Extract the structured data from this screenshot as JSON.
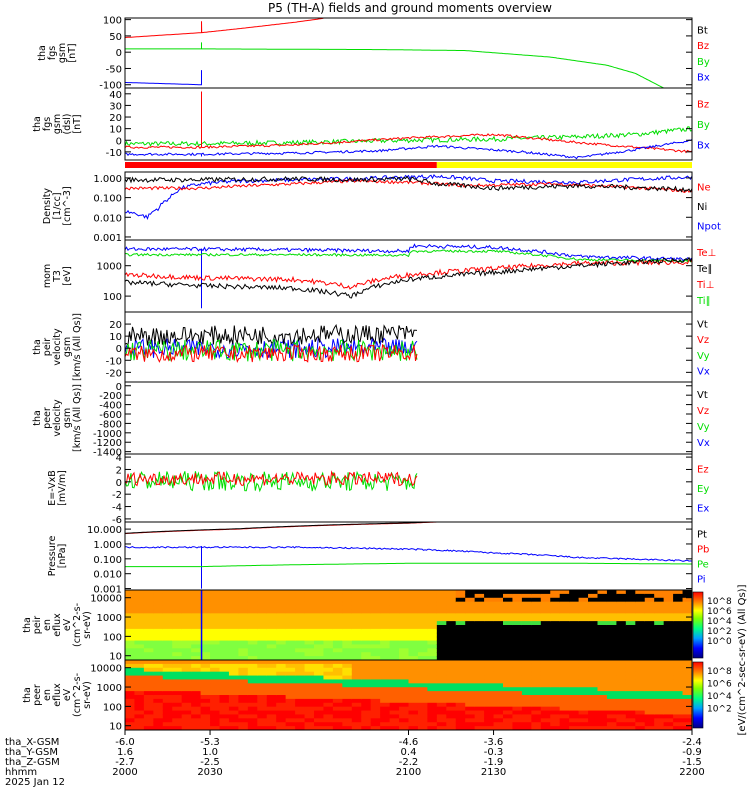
{
  "title": "P5 (TH-A) fields and ground moments overview",
  "colors": {
    "red": "#ff0000",
    "green": "#00dd00",
    "blue": "#0000ff",
    "black": "#000000",
    "yellow": "#ffff00"
  },
  "status_bar": {
    "segments": [
      {
        "from": 2000,
        "to": 2110,
        "color": "#ff0000"
      },
      {
        "from": 2110,
        "to": 2200,
        "color": "#ffff00"
      }
    ]
  },
  "chart_data": [
    {
      "id": "fgs_gsm",
      "type": "line",
      "ylabel": [
        "tha",
        "fgs",
        "gsm",
        "[nT]"
      ],
      "ylim": [
        -110,
        105
      ],
      "ticks": [
        100,
        50,
        0,
        -50,
        -100
      ],
      "legend": [
        {
          "label": "Bt",
          "color": "#000000"
        },
        {
          "label": "Bz",
          "color": "#ff0000"
        },
        {
          "label": "By",
          "color": "#00dd00"
        },
        {
          "label": "Bx",
          "color": "#0000ff"
        }
      ],
      "series": [
        {
          "color": "#ff0000",
          "x": [
            2000,
            2027,
            2040,
            2060,
            2070
          ],
          "y": [
            45,
            60,
            72,
            92,
            104
          ],
          "spike": {
            "x": 2027,
            "y": 95
          }
        },
        {
          "color": "#00dd00",
          "x": [
            2000,
            2030,
            2060,
            2090,
            2120,
            2150,
            2170,
            2180,
            2190
          ],
          "y": [
            10,
            10,
            9,
            8,
            5,
            -15,
            -40,
            -65,
            -110
          ],
          "spike": {
            "x": 2027,
            "y": 30
          }
        },
        {
          "color": "#0000ff",
          "x": [
            2000,
            2027
          ],
          "y": [
            -93,
            -100
          ],
          "spike": {
            "x": 2027,
            "y": -55
          }
        }
      ]
    },
    {
      "id": "fgs_gsm_dsl",
      "type": "line",
      "ylabel": [
        "tha",
        "fgs",
        "gsm",
        "(dsl)",
        "[nT]"
      ],
      "ylim": [
        -17,
        45
      ],
      "ticks": [
        40,
        30,
        20,
        10,
        0,
        -10
      ],
      "legend": [
        {
          "label": "Bz",
          "color": "#ff0000"
        },
        {
          "label": "By",
          "color": "#00dd00"
        },
        {
          "label": "Bx",
          "color": "#0000ff"
        }
      ],
      "series": [
        {
          "color": "#00dd00",
          "x": [
            2000,
            2027,
            2060,
            2100,
            2130,
            2160,
            2180,
            2200
          ],
          "y": [
            -3,
            -3,
            -2,
            0,
            1,
            3,
            5,
            10
          ],
          "noise": 2,
          "spike": {
            "x": 2027,
            "y": 20
          }
        },
        {
          "color": "#ff0000",
          "x": [
            2000,
            2027,
            2060,
            2100,
            2130,
            2160,
            2180,
            2200
          ],
          "y": [
            -6,
            -6,
            -4,
            2,
            5,
            -2,
            -6,
            -10
          ],
          "noise": 1,
          "spike": {
            "x": 2027,
            "y": 42
          }
        },
        {
          "color": "#0000ff",
          "x": [
            2000,
            2027,
            2060,
            2090,
            2110,
            2140,
            2160,
            2180,
            2200
          ],
          "y": [
            -12,
            -12,
            -11,
            -9,
            -5,
            -10,
            -15,
            -8,
            0
          ],
          "noise": 1,
          "spike": {
            "x": 2027,
            "y": -14
          }
        }
      ]
    },
    {
      "id": "density",
      "type": "line",
      "log": true,
      "ylabel": [
        "Density",
        "[1/cc]",
        "[cm^-3]"
      ],
      "ylim": [
        0.0007,
        2
      ],
      "ticks": [
        1.0,
        0.1,
        0.01,
        0.001
      ],
      "tick_labels": [
        "1.000",
        "0.100",
        "0.010",
        "0.001"
      ],
      "legend": [
        {
          "label": "Ne",
          "color": "#ff0000"
        },
        {
          "label": "Ni",
          "color": "#000000"
        },
        {
          "label": "Npot",
          "color": "#0000ff"
        }
      ],
      "series": [
        {
          "color": "#0000ff",
          "x": [
            2000,
            2008,
            2012,
            2016,
            2020,
            2027,
            2040,
            2060,
            2080,
            2100,
            2110,
            2130,
            2160,
            2200
          ],
          "y": [
            0.02,
            0.01,
            0.03,
            0.1,
            0.3,
            0.5,
            0.7,
            0.8,
            0.9,
            1.1,
            1.2,
            0.7,
            0.6,
            1.1
          ],
          "noise": 0.1
        },
        {
          "color": "#ff0000",
          "x": [
            2000,
            2027,
            2060,
            2080,
            2100,
            2120,
            2150,
            2200
          ],
          "y": [
            0.3,
            0.3,
            0.5,
            0.7,
            0.6,
            0.4,
            0.5,
            0.2
          ],
          "noise": 0.08
        },
        {
          "color": "#000000",
          "x": [
            2000,
            2027,
            2060,
            2080,
            2100,
            2110,
            2130,
            2160,
            2200
          ],
          "y": [
            0.8,
            0.8,
            0.9,
            0.8,
            0.9,
            0.5,
            0.3,
            0.4,
            0.25
          ],
          "noise": 0.12
        }
      ]
    },
    {
      "id": "moments",
      "type": "line",
      "log": true,
      "ylabel": [
        "mom",
        "T3",
        "[eV]"
      ],
      "ylim": [
        30,
        7000
      ],
      "ticks": [
        1000,
        100
      ],
      "tick_labels": [
        "1000",
        "100"
      ],
      "legend": [
        {
          "label": "Te⊥",
          "color": "#ff0000"
        },
        {
          "label": "Te∥",
          "color": "#000000"
        },
        {
          "label": "Ti⊥",
          "color": "#ff0000"
        },
        {
          "label": "Ti∥",
          "color": "#00dd00"
        }
      ],
      "series": [
        {
          "color": "#0000ff",
          "x": [
            2000,
            2027,
            2060,
            2100,
            2101,
            2130,
            2160,
            2200
          ],
          "y": [
            3500,
            3500,
            3300,
            3000,
            4500,
            4000,
            2000,
            1600
          ],
          "noise": 0.06,
          "spike": {
            "x": 2027,
            "y": 40
          }
        },
        {
          "color": "#00dd00",
          "x": [
            2000,
            2027,
            2060,
            2100,
            2101,
            2130,
            2160,
            2200
          ],
          "y": [
            2300,
            2300,
            2300,
            2200,
            3000,
            3000,
            1600,
            1400
          ],
          "noise": 0.04
        },
        {
          "color": "#ff0000",
          "x": [
            2000,
            2027,
            2060,
            2080,
            2100,
            2130,
            2160,
            2200
          ],
          "y": [
            500,
            400,
            350,
            200,
            500,
            800,
            1200,
            1300
          ],
          "noise": 0.08
        },
        {
          "color": "#000000",
          "x": [
            2000,
            2027,
            2060,
            2080,
            2100,
            2130,
            2160,
            2200
          ],
          "y": [
            280,
            220,
            180,
            100,
            350,
            600,
            1000,
            1600
          ],
          "noise": 0.08
        }
      ]
    },
    {
      "id": "peir_velocity",
      "type": "line",
      "ylabel": [
        "tha",
        "peir",
        "velocity",
        "gsm",
        "[km/s (All Qs)]"
      ],
      "ylim": [
        -28,
        30
      ],
      "ticks": [
        20,
        10,
        0,
        -10,
        -20
      ],
      "legend": [
        {
          "label": "Vt",
          "color": "#000000"
        },
        {
          "label": "Vz",
          "color": "#ff0000"
        },
        {
          "label": "Vy",
          "color": "#00dd00"
        },
        {
          "label": "Vx",
          "color": "#0000ff"
        }
      ],
      "series": [
        {
          "color": "#0000ff",
          "x": [
            2000,
            2103
          ],
          "y": [
            0,
            0
          ],
          "noise": 8
        },
        {
          "color": "#000000",
          "x": [
            2000,
            2103
          ],
          "y": [
            10,
            12
          ],
          "noise": 8
        },
        {
          "color": "#00dd00",
          "x": [
            2000,
            2103
          ],
          "y": [
            -2,
            -2
          ],
          "noise": 9
        },
        {
          "color": "#ff0000",
          "x": [
            2000,
            2103
          ],
          "y": [
            -5,
            -4
          ],
          "noise": 7
        }
      ]
    },
    {
      "id": "peer_velocity",
      "type": "line",
      "ylabel": [
        "tha",
        "peer",
        "velocity",
        "gsm",
        "[km/s (All Qs)]"
      ],
      "ylim": [
        -1450,
        80
      ],
      "ticks": [
        0,
        -200,
        -400,
        -600,
        -800,
        -1000,
        -1200,
        -1400
      ],
      "legend": [
        {
          "label": "Vt",
          "color": "#000000"
        },
        {
          "label": "Vz",
          "color": "#ff0000"
        },
        {
          "label": "Vy",
          "color": "#00dd00"
        },
        {
          "label": "Vx",
          "color": "#0000ff"
        }
      ],
      "series": []
    },
    {
      "id": "efield",
      "type": "line",
      "ylabel": [
        "E=-VxB",
        "[mV/m]"
      ],
      "ylim": [
        -6.5,
        4.5
      ],
      "ticks": [
        4,
        2,
        0,
        -2,
        -4,
        -6
      ],
      "legend": [
        {
          "label": "Ez",
          "color": "#ff0000"
        },
        {
          "label": "Ey",
          "color": "#00dd00"
        },
        {
          "label": "Ex",
          "color": "#0000ff"
        }
      ],
      "series": [
        {
          "color": "#00dd00",
          "x": [
            2000,
            2103
          ],
          "y": [
            0.2,
            0
          ],
          "noise": 1.6
        },
        {
          "color": "#ff0000",
          "x": [
            2000,
            2103
          ],
          "y": [
            0.5,
            0.5
          ],
          "noise": 1.1
        }
      ]
    },
    {
      "id": "pressure",
      "type": "line",
      "log": true,
      "ylabel": [
        "Pressure",
        "[nPa]"
      ],
      "ylim": [
        0.0008,
        30
      ],
      "ticks": [
        10.0,
        1.0,
        0.1,
        0.01,
        0.001
      ],
      "tick_labels": [
        "10.000",
        "1.000",
        "0.100",
        "0.010",
        "0.001"
      ],
      "legend": [
        {
          "label": "Pt",
          "color": "#000000"
        },
        {
          "label": "Pb",
          "color": "#ff0000"
        },
        {
          "label": "Pe",
          "color": "#00dd00"
        },
        {
          "label": "Pi",
          "color": "#0000ff"
        }
      ],
      "series": [
        {
          "color": "#ff0000",
          "x": [
            2000,
            2040,
            2080,
            2100,
            2110
          ],
          "y": [
            5,
            10,
            20,
            25,
            30
          ]
        },
        {
          "color": "#000000",
          "x": [
            2000,
            2040,
            2080,
            2100,
            2110
          ],
          "y": [
            5.2,
            10.5,
            21,
            26,
            31
          ]
        },
        {
          "color": "#0000ff",
          "x": [
            2000,
            2027,
            2060,
            2100,
            2130,
            2160,
            2200
          ],
          "y": [
            0.6,
            0.6,
            0.6,
            0.45,
            0.25,
            0.12,
            0.07
          ],
          "noise": 0.05,
          "spike": {
            "x": 2027,
            "y": 0.001
          }
        },
        {
          "color": "#00dd00",
          "x": [
            2000,
            2027,
            2060,
            2100,
            2130,
            2160,
            2200
          ],
          "y": [
            0.03,
            0.03,
            0.04,
            0.05,
            0.05,
            0.05,
            0.045
          ]
        }
      ]
    },
    {
      "id": "peir_eflux",
      "type": "heatmap",
      "log": true,
      "ylabel": [
        "tha",
        "peir",
        "en",
        "eflux",
        "eV",
        "(cm^2-s-",
        "sr-eV)"
      ],
      "ylim": [
        6,
        25000
      ],
      "ticks": [
        10000,
        1000,
        100,
        10
      ],
      "tick_labels": [
        "10000",
        "1000",
        "100",
        "10"
      ],
      "colorbar": {
        "tick_labels": [
          "10^8",
          "10^6",
          "10^4",
          "10^2",
          "10^0"
        ]
      }
    },
    {
      "id": "peer_eflux",
      "type": "heatmap",
      "log": true,
      "ylabel": [
        "tha",
        "peer",
        "en",
        "eflux",
        "eV",
        "(cm^2-s-",
        "sr-eV)"
      ],
      "ylim": [
        6,
        25000
      ],
      "ticks": [
        10000,
        1000,
        100,
        10
      ],
      "tick_labels": [
        "10000",
        "1000",
        "100",
        "10"
      ],
      "colorbar": {
        "tick_labels": [
          "10^8",
          "10^6",
          "10^4",
          "10^2"
        ]
      }
    }
  ],
  "colorbar_label": "[eV/(cm^2-sec-sr-eV) (All Qs)]",
  "x_axis": {
    "range": [
      2000,
      2200
    ],
    "ticks": [
      2000,
      2030,
      2100,
      2130,
      2200
    ],
    "rows": [
      {
        "label": "tha_X-GSM",
        "values": [
          "-6.0",
          "-5.3",
          "-4.6",
          "-3.6",
          "-2.4"
        ]
      },
      {
        "label": "tha_Y-GSM",
        "values": [
          "1.6",
          "1.0",
          "0.4",
          "-0.3",
          "-0.9"
        ]
      },
      {
        "label": "tha_Z-GSM",
        "values": [
          "-2.7",
          "-2.5",
          "-2.2",
          "-1.9",
          "-1.5"
        ]
      },
      {
        "label": "hhmm",
        "values": [
          "2000",
          "2030",
          "2100",
          "2130",
          "2200"
        ]
      }
    ],
    "date": "2025 Jan 12"
  }
}
